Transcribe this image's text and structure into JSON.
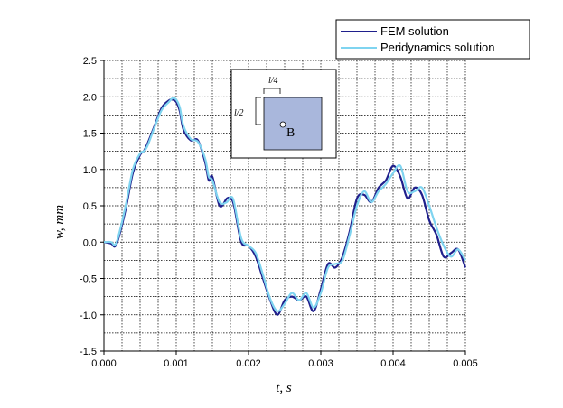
{
  "chart_data": {
    "type": "line",
    "title": "",
    "xlabel": "t, s",
    "ylabel": "w, mm",
    "xlim": [
      0,
      0.005
    ],
    "ylim": [
      -1.5,
      2.5
    ],
    "xticks": [
      "0.000",
      "0.001",
      "0.002",
      "0.003",
      "0.004",
      "0.005"
    ],
    "yticks": [
      "2.5",
      "2.0",
      "1.5",
      "1.0",
      "0.5",
      "0.0",
      "-0.5",
      "-1.0",
      "-1.5"
    ],
    "grid": true,
    "legend_position": "top-right",
    "series": [
      {
        "name": "FEM solution",
        "color": "#1f1f8c",
        "x": [
          0,
          0.0001,
          0.00015,
          0.0002,
          0.0003,
          0.0004,
          0.0005,
          0.00055,
          0.0006,
          0.0007,
          0.0008,
          0.0009,
          0.00095,
          0.001,
          0.00105,
          0.0011,
          0.0012,
          0.0013,
          0.0014,
          0.00145,
          0.0015,
          0.0016,
          0.0017,
          0.00175,
          0.0018,
          0.0019,
          0.002,
          0.0021,
          0.0022,
          0.0023,
          0.0024,
          0.0025,
          0.0026,
          0.0027,
          0.0028,
          0.0029,
          0.003,
          0.0031,
          0.0032,
          0.0033,
          0.0034,
          0.0035,
          0.0036,
          0.0037,
          0.0038,
          0.0039,
          0.004,
          0.0041,
          0.0042,
          0.0043,
          0.0044,
          0.0045,
          0.0046,
          0.0047,
          0.0048,
          0.0049,
          0.005
        ],
        "y": [
          0.0,
          -0.02,
          -0.06,
          0.05,
          0.45,
          0.95,
          1.2,
          1.25,
          1.35,
          1.6,
          1.85,
          1.95,
          1.96,
          1.93,
          1.8,
          1.55,
          1.4,
          1.4,
          1.1,
          0.85,
          0.9,
          0.5,
          0.6,
          0.6,
          0.5,
          0.0,
          -0.05,
          -0.2,
          -0.5,
          -0.8,
          -1.0,
          -0.8,
          -0.75,
          -0.8,
          -0.75,
          -0.95,
          -0.65,
          -0.3,
          -0.35,
          -0.2,
          0.15,
          0.6,
          0.65,
          0.55,
          0.75,
          0.85,
          1.05,
          0.9,
          0.6,
          0.75,
          0.65,
          0.3,
          0.1,
          -0.2,
          -0.15,
          -0.1,
          -0.35
        ]
      },
      {
        "name": "Peridynamics solution",
        "color": "#7fd4f0",
        "x": [
          0,
          0.0001,
          0.00015,
          0.0002,
          0.0003,
          0.0004,
          0.0005,
          0.00055,
          0.0006,
          0.0007,
          0.0008,
          0.0009,
          0.00095,
          0.001,
          0.00105,
          0.0011,
          0.0012,
          0.0013,
          0.0014,
          0.00145,
          0.0015,
          0.0016,
          0.0017,
          0.00175,
          0.0018,
          0.0019,
          0.002,
          0.0021,
          0.0022,
          0.0023,
          0.0024,
          0.0025,
          0.0026,
          0.0027,
          0.0028,
          0.0029,
          0.003,
          0.0031,
          0.0032,
          0.0033,
          0.0034,
          0.0035,
          0.0036,
          0.0037,
          0.0038,
          0.0039,
          0.004,
          0.0041,
          0.0042,
          0.0043,
          0.0044,
          0.0045,
          0.0046,
          0.0047,
          0.0048,
          0.0049,
          0.005
        ],
        "y": [
          0.0,
          0.0,
          -0.04,
          0.08,
          0.5,
          1.0,
          1.22,
          1.25,
          1.32,
          1.58,
          1.82,
          1.93,
          1.98,
          1.96,
          1.85,
          1.6,
          1.42,
          1.38,
          1.15,
          0.9,
          0.85,
          0.55,
          0.55,
          0.62,
          0.55,
          0.05,
          -0.05,
          -0.15,
          -0.45,
          -0.78,
          -0.95,
          -0.85,
          -0.7,
          -0.8,
          -0.7,
          -0.9,
          -0.7,
          -0.35,
          -0.3,
          -0.25,
          0.1,
          0.5,
          0.7,
          0.55,
          0.7,
          0.8,
          0.95,
          1.05,
          0.7,
          0.7,
          0.75,
          0.5,
          0.2,
          -0.05,
          -0.2,
          -0.1,
          -0.25
        ]
      }
    ],
    "inset": {
      "label_l4": "l/4",
      "label_l2": "l/2",
      "label_b": "B",
      "fill_color": "#a9b7dc"
    }
  }
}
